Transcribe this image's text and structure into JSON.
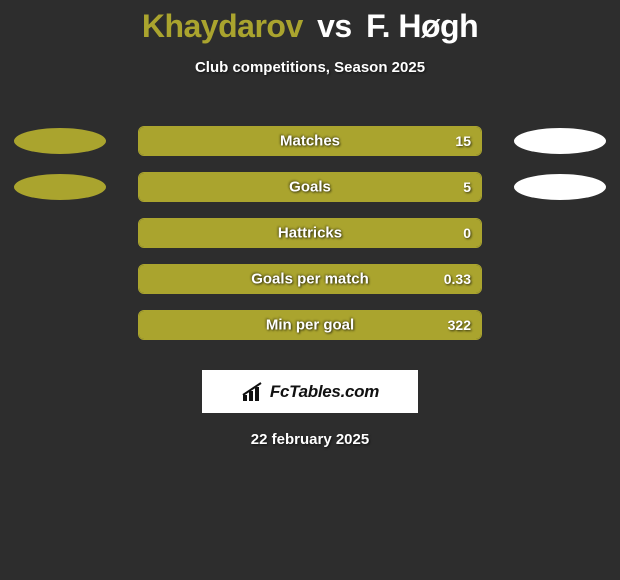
{
  "header": {
    "player1": "Khaydarov",
    "vs": "vs",
    "player2": "F. Høgh",
    "subtitle": "Club competitions, Season 2025"
  },
  "colors": {
    "p1": "#aaa42e",
    "p2": "#ffffff",
    "background": "#2d2d2d",
    "bar_border": "#aaa42e"
  },
  "stats": [
    {
      "label": "Matches",
      "left_val": "",
      "right_val": "15",
      "left_pct": 100,
      "right_pct": 0,
      "show_left_badge": true,
      "show_right_badge": true
    },
    {
      "label": "Goals",
      "left_val": "",
      "right_val": "5",
      "left_pct": 100,
      "right_pct": 0,
      "show_left_badge": true,
      "show_right_badge": true
    },
    {
      "label": "Hattricks",
      "left_val": "",
      "right_val": "0",
      "left_pct": 100,
      "right_pct": 0,
      "show_left_badge": false,
      "show_right_badge": false
    },
    {
      "label": "Goals per match",
      "left_val": "",
      "right_val": "0.33",
      "left_pct": 100,
      "right_pct": 0,
      "show_left_badge": false,
      "show_right_badge": false
    },
    {
      "label": "Min per goal",
      "left_val": "",
      "right_val": "322",
      "left_pct": 100,
      "right_pct": 0,
      "show_left_badge": false,
      "show_right_badge": false
    }
  ],
  "footer": {
    "brand": "FcTables.com",
    "date": "22 february 2025"
  }
}
